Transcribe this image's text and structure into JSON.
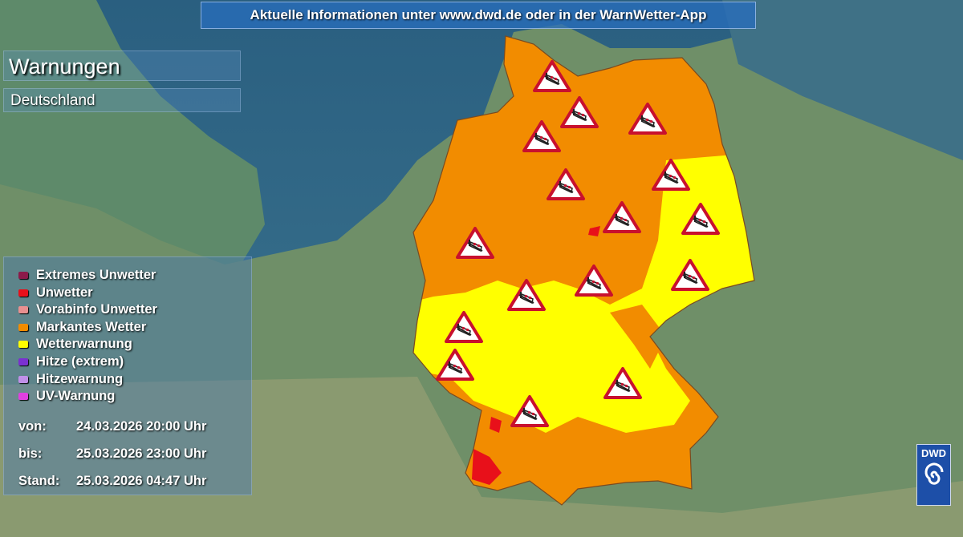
{
  "banner": "Aktuelle Informationen unter www.dwd.de oder in der WarnWetter-App",
  "title": "Warnungen",
  "region": "Deutschland",
  "legend": [
    {
      "label": "Extremes Unwetter",
      "color": "#8b1a4a"
    },
    {
      "label": "Unwetter",
      "color": "#e8101a"
    },
    {
      "label": "Vorabinfo Unwetter",
      "color": "#e89090"
    },
    {
      "label": "Markantes Wetter",
      "color": "#f28c00"
    },
    {
      "label": "Wetterwarnung",
      "color": "#ffff00"
    },
    {
      "label": "Hitze (extrem)",
      "color": "#7a30d0"
    },
    {
      "label": "Hitzewarnung",
      "color": "#c090e8"
    },
    {
      "label": "UV-Warnung",
      "color": "#e040e0"
    }
  ],
  "validity": [
    {
      "label": "von:",
      "value": "24.03.2026 20:00 Uhr"
    },
    {
      "label": "bis:",
      "value": "25.03.2026 23:00 Uhr"
    },
    {
      "label": "Stand:",
      "value": "25.03.2026 04:47 Uhr"
    }
  ],
  "map": {
    "warning_icon": "wind-warning-triangle-icon",
    "warning_count": 16
  },
  "logo": "DWD"
}
